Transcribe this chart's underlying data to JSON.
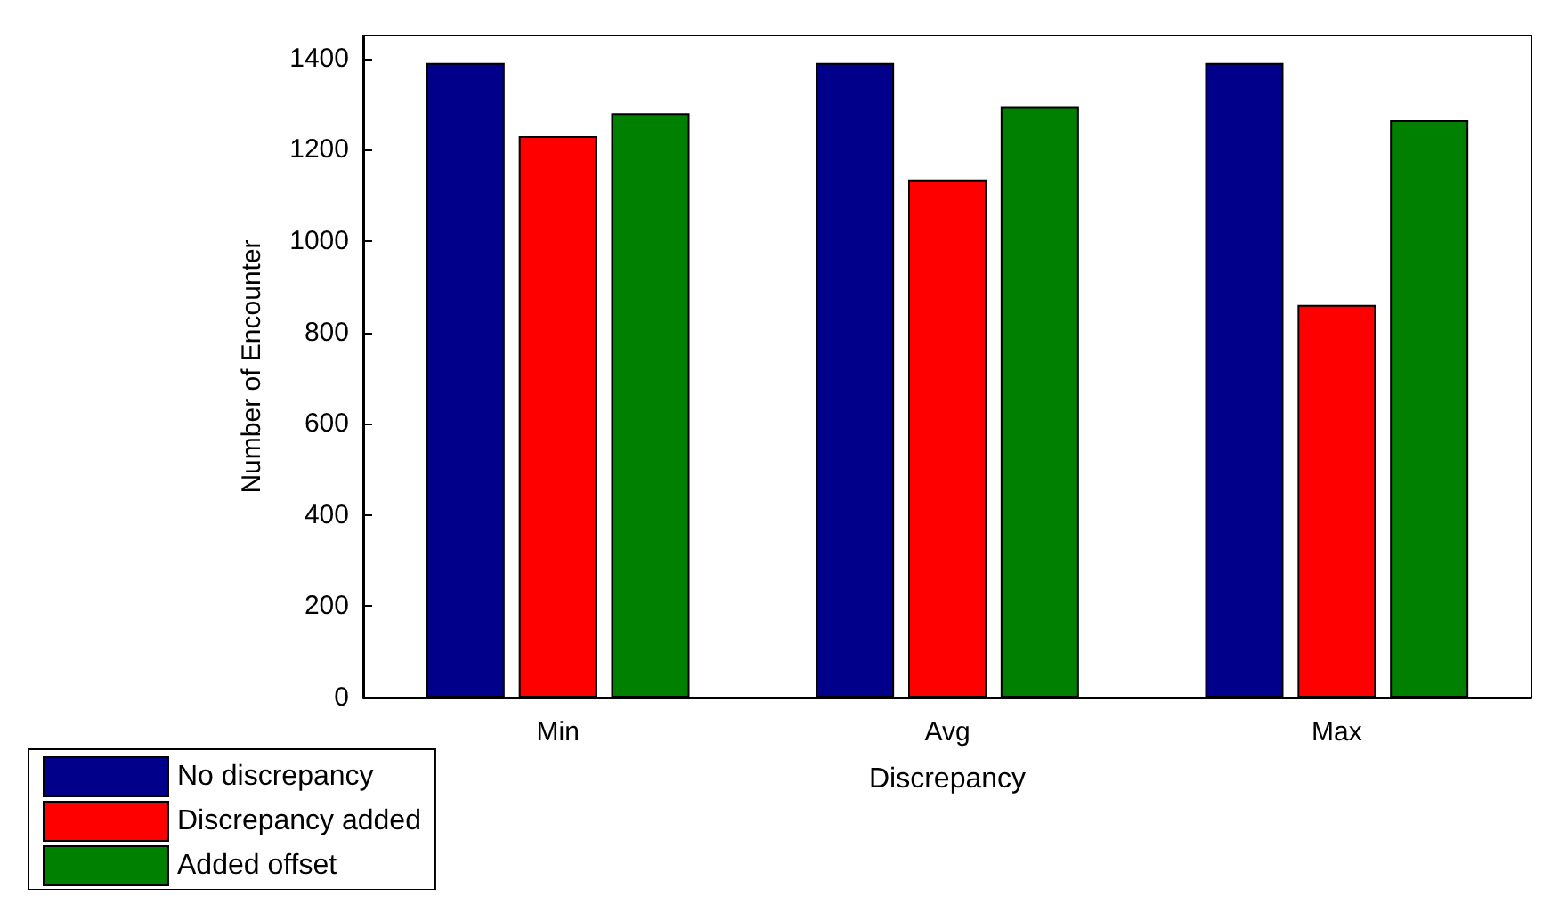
{
  "chart_data": {
    "type": "bar",
    "xlabel": "Discrepancy",
    "ylabel": "Number of Encounter",
    "categories": [
      "Min",
      "Avg",
      "Max"
    ],
    "series": [
      {
        "name": "No discrepancy",
        "color": "#00008b",
        "values": [
          1390,
          1390,
          1390
        ]
      },
      {
        "name": "Discrepancy added",
        "color": "#ff0000",
        "values": [
          1230,
          1135,
          860
        ]
      },
      {
        "name": "Added offset",
        "color": "#008000",
        "values": [
          1280,
          1295,
          1265
        ]
      }
    ],
    "ylim": [
      0,
      1450
    ],
    "yticks": [
      0,
      200,
      400,
      600,
      800,
      1000,
      1200,
      1400
    ],
    "grid": false,
    "legend": "bottom left"
  }
}
